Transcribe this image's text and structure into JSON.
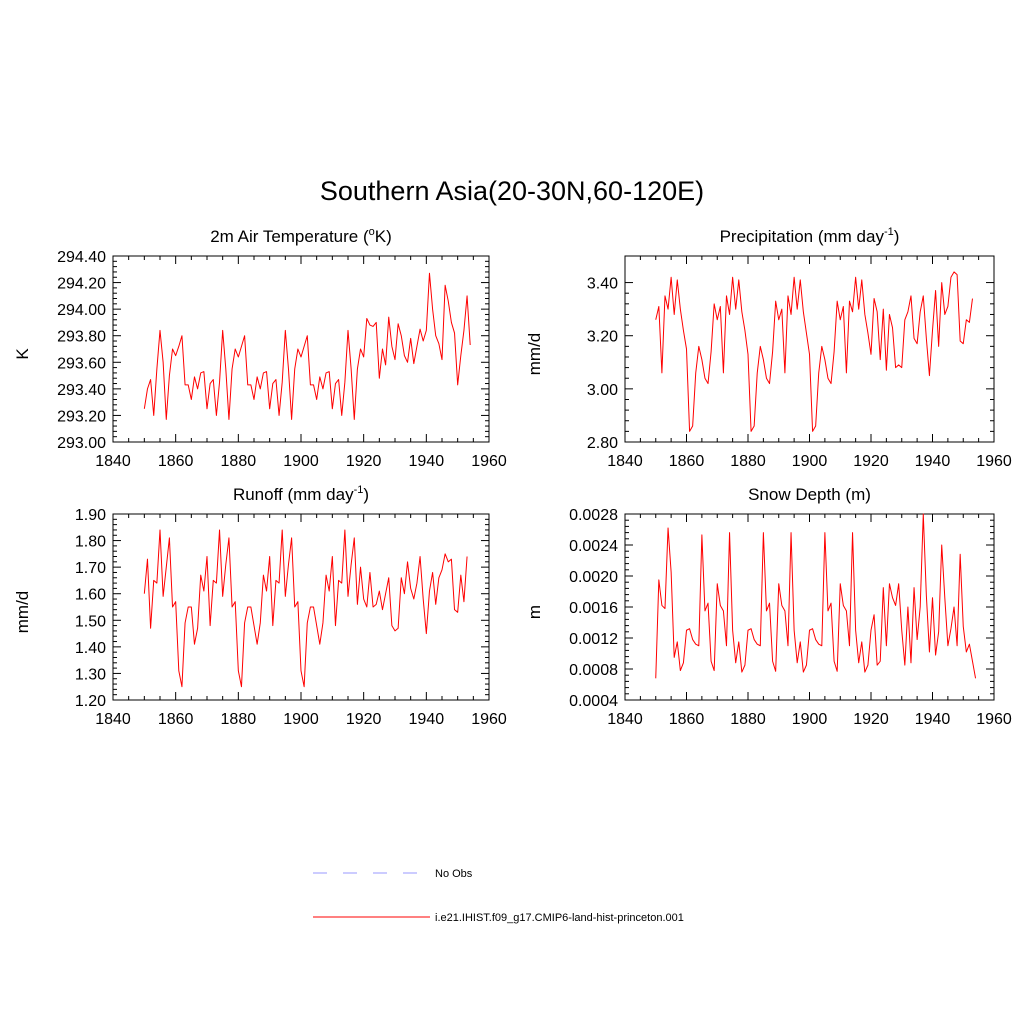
{
  "figure": {
    "title": "Southern Asia(20-30N,60-120E)"
  },
  "legend": {
    "entries": [
      {
        "label": "No Obs",
        "color": "#9999ff",
        "style": "dashed"
      },
      {
        "label": "i.e21.IHIST.f09_g17.CMIP6-land-hist-princeton.001",
        "color": "#ff0000",
        "style": "solid"
      }
    ]
  },
  "colors": {
    "series": "#ff0000",
    "obs": "#9999ff",
    "axis": "#000000"
  },
  "chart_data": [
    {
      "type": "line",
      "title_main": "2m Air Temperature (",
      "title_sup": "o",
      "title_end": "K)",
      "ylabel": "K",
      "xlim": [
        1840,
        1960
      ],
      "ylim": [
        293.0,
        294.4
      ],
      "xticks": [
        "1840",
        "1860",
        "1880",
        "1900",
        "1920",
        "1940",
        "1960"
      ],
      "yticks": [
        "293.00",
        "293.20",
        "293.40",
        "293.60",
        "293.80",
        "294.00",
        "294.20",
        "294.40"
      ],
      "ytick_values": [
        293.0,
        293.2,
        293.4,
        293.6,
        293.8,
        294.0,
        294.2,
        294.4
      ],
      "x_start": 1850,
      "series": [
        {
          "values": [
            293.25,
            293.4,
            293.47,
            293.2,
            293.55,
            293.84,
            293.6,
            293.17,
            293.5,
            293.7,
            293.65,
            293.72,
            293.8,
            293.43,
            293.43,
            293.32,
            293.49,
            293.4,
            293.52,
            293.53,
            293.25,
            293.44,
            293.47,
            293.2,
            293.45,
            293.84,
            293.55,
            293.17,
            293.55,
            293.7,
            293.64,
            293.72,
            293.8,
            293.43,
            293.43,
            293.32,
            293.49,
            293.4,
            293.52,
            293.53,
            293.25,
            293.44,
            293.47,
            293.2,
            293.45,
            293.84,
            293.55,
            293.17,
            293.55,
            293.7,
            293.64,
            293.72,
            293.8,
            293.43,
            293.43,
            293.32,
            293.49,
            293.4,
            293.52,
            293.53,
            293.25,
            293.44,
            293.47,
            293.2,
            293.45,
            293.84,
            293.55,
            293.17,
            293.55,
            293.7,
            293.64,
            293.93,
            293.88,
            293.87,
            293.9,
            293.48,
            293.7,
            293.58,
            293.94,
            293.72,
            293.62,
            293.89,
            293.8,
            293.65,
            293.6,
            293.78,
            293.59,
            293.72,
            293.85,
            293.76,
            293.84,
            294.27,
            294.0,
            293.8,
            293.74,
            293.62,
            294.18,
            294.06,
            293.9,
            293.82,
            293.43,
            293.65,
            293.84,
            294.1,
            293.73
          ]
        }
      ]
    },
    {
      "type": "line",
      "title_main": "Precipitation (mm day",
      "title_sup": "-1",
      "title_end": ")",
      "ylabel": "mm/d",
      "xlim": [
        1840,
        1960
      ],
      "ylim": [
        2.8,
        3.5
      ],
      "xticks": [
        "1840",
        "1860",
        "1880",
        "1900",
        "1920",
        "1940",
        "1960"
      ],
      "yticks": [
        "2.80",
        "3.00",
        "3.20",
        "3.40"
      ],
      "ytick_values": [
        2.8,
        3.0,
        3.2,
        3.4
      ],
      "x_start": 1850,
      "series": [
        {
          "values": [
            3.26,
            3.31,
            3.06,
            3.35,
            3.3,
            3.42,
            3.28,
            3.41,
            3.3,
            3.22,
            3.15,
            2.84,
            2.86,
            3.06,
            3.16,
            3.11,
            3.04,
            3.02,
            3.14,
            3.32,
            3.26,
            3.31,
            3.06,
            3.35,
            3.28,
            3.42,
            3.3,
            3.41,
            3.29,
            3.22,
            3.13,
            2.84,
            2.86,
            3.06,
            3.16,
            3.11,
            3.04,
            3.02,
            3.14,
            3.33,
            3.26,
            3.3,
            3.06,
            3.35,
            3.28,
            3.42,
            3.3,
            3.41,
            3.29,
            3.21,
            3.13,
            2.84,
            2.86,
            3.06,
            3.16,
            3.11,
            3.04,
            3.02,
            3.14,
            3.33,
            3.26,
            3.31,
            3.06,
            3.33,
            3.29,
            3.42,
            3.3,
            3.41,
            3.28,
            3.21,
            3.13,
            3.34,
            3.29,
            3.11,
            3.3,
            3.07,
            3.28,
            3.23,
            3.08,
            3.09,
            3.08,
            3.26,
            3.29,
            3.35,
            3.19,
            3.17,
            3.29,
            3.35,
            3.19,
            3.05,
            3.22,
            3.37,
            3.16,
            3.4,
            3.28,
            3.31,
            3.42,
            3.44,
            3.43,
            3.18,
            3.17,
            3.26,
            3.25,
            3.34
          ]
        }
      ]
    },
    {
      "type": "line",
      "title_main": "Runoff (mm day",
      "title_sup": "-1",
      "title_end": ")",
      "ylabel": "mm/d",
      "xlim": [
        1840,
        1960
      ],
      "ylim": [
        1.2,
        1.9
      ],
      "xticks": [
        "1840",
        "1860",
        "1880",
        "1900",
        "1920",
        "1940",
        "1960"
      ],
      "yticks": [
        "1.20",
        "1.30",
        "1.40",
        "1.50",
        "1.60",
        "1.70",
        "1.80",
        "1.90"
      ],
      "ytick_values": [
        1.2,
        1.3,
        1.4,
        1.5,
        1.6,
        1.7,
        1.8,
        1.9
      ],
      "x_start": 1850,
      "series": [
        {
          "values": [
            1.6,
            1.73,
            1.47,
            1.65,
            1.64,
            1.84,
            1.59,
            1.7,
            1.81,
            1.55,
            1.57,
            1.31,
            1.25,
            1.49,
            1.55,
            1.55,
            1.41,
            1.47,
            1.67,
            1.61,
            1.74,
            1.48,
            1.65,
            1.64,
            1.84,
            1.59,
            1.71,
            1.81,
            1.55,
            1.57,
            1.31,
            1.25,
            1.49,
            1.55,
            1.55,
            1.48,
            1.41,
            1.49,
            1.67,
            1.61,
            1.74,
            1.48,
            1.65,
            1.64,
            1.84,
            1.59,
            1.71,
            1.81,
            1.55,
            1.57,
            1.31,
            1.25,
            1.49,
            1.55,
            1.55,
            1.48,
            1.41,
            1.49,
            1.67,
            1.61,
            1.74,
            1.48,
            1.65,
            1.64,
            1.84,
            1.59,
            1.71,
            1.81,
            1.56,
            1.7,
            1.58,
            1.55,
            1.68,
            1.55,
            1.56,
            1.61,
            1.54,
            1.6,
            1.66,
            1.48,
            1.46,
            1.47,
            1.66,
            1.6,
            1.72,
            1.62,
            1.58,
            1.64,
            1.74,
            1.58,
            1.45,
            1.61,
            1.68,
            1.56,
            1.66,
            1.69,
            1.75,
            1.72,
            1.73,
            1.54,
            1.53,
            1.67,
            1.57,
            1.74
          ]
        }
      ]
    },
    {
      "type": "line",
      "title_main": "Snow Depth (m)",
      "title_sup": "",
      "title_end": "",
      "ylabel": "m",
      "xlim": [
        1840,
        1960
      ],
      "ylim": [
        0.0004,
        0.0028
      ],
      "xticks": [
        "1840",
        "1860",
        "1880",
        "1900",
        "1920",
        "1940",
        "1960"
      ],
      "yticks": [
        "0.0004",
        "0.0008",
        "0.0012",
        "0.0016",
        "0.0020",
        "0.0024",
        "0.0028"
      ],
      "ytick_values": [
        0.0004,
        0.0008,
        0.0012,
        0.0016,
        0.002,
        0.0024,
        0.0028
      ],
      "x_start": 1850,
      "series": [
        {
          "values": [
            0.00068,
            0.00195,
            0.00162,
            0.00158,
            0.00262,
            0.00205,
            0.00095,
            0.00115,
            0.00078,
            0.00088,
            0.0013,
            0.00132,
            0.00118,
            0.00112,
            0.0011,
            0.00253,
            0.00155,
            0.00165,
            0.0009,
            0.00078,
            0.0019,
            0.00162,
            0.00155,
            0.0011,
            0.00256,
            0.0013,
            0.00088,
            0.00115,
            0.00076,
            0.00085,
            0.0013,
            0.00132,
            0.00118,
            0.00112,
            0.0011,
            0.00256,
            0.00155,
            0.00165,
            0.0009,
            0.00077,
            0.0019,
            0.00162,
            0.00155,
            0.0011,
            0.00256,
            0.0013,
            0.00088,
            0.00115,
            0.00076,
            0.00085,
            0.0013,
            0.00132,
            0.00118,
            0.00112,
            0.0011,
            0.00256,
            0.00155,
            0.00165,
            0.0009,
            0.00077,
            0.0019,
            0.00162,
            0.00155,
            0.0011,
            0.00256,
            0.0013,
            0.00088,
            0.00115,
            0.00076,
            0.00085,
            0.0013,
            0.0015,
            0.00085,
            0.0009,
            0.00185,
            0.0011,
            0.0019,
            0.00172,
            0.00162,
            0.0019,
            0.0013,
            0.00085,
            0.0016,
            0.00088,
            0.00185,
            0.00118,
            0.0016,
            0.0028,
            0.00175,
            0.00102,
            0.00172,
            0.00098,
            0.00128,
            0.0024,
            0.00172,
            0.0011,
            0.00132,
            0.0016,
            0.0011,
            0.00228,
            0.00135,
            0.00102,
            0.00112,
            0.0009,
            0.00068
          ]
        }
      ]
    }
  ]
}
